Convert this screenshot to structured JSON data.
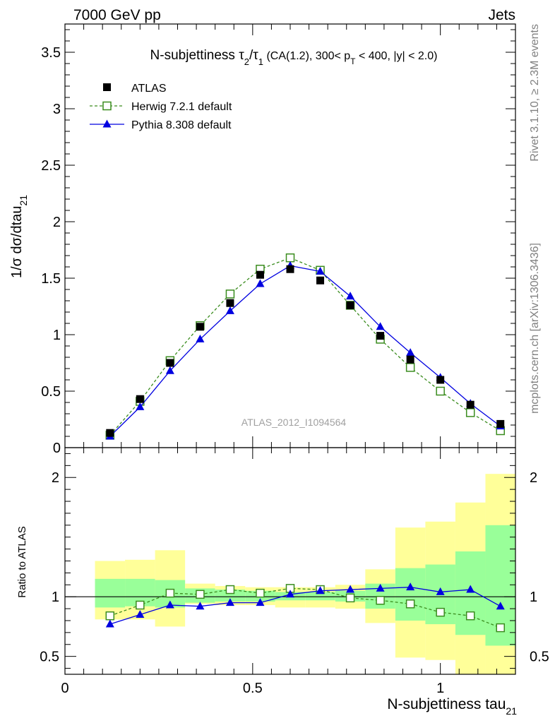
{
  "header": {
    "left_label": "7000 GeV pp",
    "right_label": "Jets"
  },
  "side_labels": {
    "rivet": "Rivet 3.1.10, ≥ 2.3M events",
    "mcplots": "mcplots.cern.ch [arXiv:1306.3436]"
  },
  "chart_data": [
    {
      "type": "scatter",
      "title": {
        "prefix": "N-subjettiness ",
        "tau": "τ",
        "sub2": "2",
        "slash": "/",
        "sub1": "1",
        "selection": " (CA(1.2), 300< p",
        "subT": "T",
        "rest": " < 400, |y| < 2.0)"
      },
      "ylabel": {
        "main": "1/σ dσ/dtau",
        "sub": "21"
      },
      "watermark": "ATLAS_2012_I1094564",
      "xlim": [
        0,
        1.2
      ],
      "ylim": [
        0,
        3.75
      ],
      "y_ticks": [
        0,
        0.5,
        1,
        1.5,
        2,
        2.5,
        3,
        3.5
      ],
      "y_tick_labels": [
        "0",
        "0.5",
        "1",
        "1.5",
        "2",
        "2.5",
        "3",
        "3.5"
      ],
      "legend": {
        "position": "top-left",
        "entries": [
          "ATLAS",
          "Herwig 7.2.1 default",
          "Pythia 8.308 default"
        ]
      },
      "x": [
        0.12,
        0.2,
        0.28,
        0.36,
        0.44,
        0.52,
        0.6,
        0.68,
        0.76,
        0.84,
        0.92,
        1.0,
        1.08,
        1.16
      ],
      "bin_edges": [
        0.08,
        0.16,
        0.24,
        0.32,
        0.4,
        0.48,
        0.56,
        0.64,
        0.72,
        0.8,
        0.88,
        0.96,
        1.04,
        1.12,
        1.2
      ],
      "series": [
        {
          "name": "ATLAS",
          "color": "#000000",
          "marker": "filled-square",
          "values": [
            0.13,
            0.43,
            0.75,
            1.07,
            1.28,
            1.53,
            1.58,
            1.48,
            1.26,
            0.99,
            0.78,
            0.6,
            0.38,
            0.21
          ]
        },
        {
          "name": "Herwig 7.2.1 default",
          "color": "#3a8c1e",
          "marker": "open-square",
          "line": "dashed",
          "values": [
            0.11,
            0.41,
            0.77,
            1.08,
            1.36,
            1.58,
            1.68,
            1.57,
            1.26,
            0.96,
            0.71,
            0.5,
            0.31,
            0.15
          ]
        },
        {
          "name": "Pythia 8.308 default",
          "color": "#0000e0",
          "marker": "filled-triangle",
          "line": "solid",
          "values": [
            0.1,
            0.36,
            0.68,
            0.96,
            1.21,
            1.45,
            1.61,
            1.56,
            1.34,
            1.07,
            0.84,
            0.62,
            0.39,
            0.19
          ]
        }
      ]
    },
    {
      "type": "line",
      "ylabel": "Ratio to ATLAS",
      "xlabel": {
        "main": "N-subjettiness tau",
        "sub": "21"
      },
      "xlim": [
        0,
        1.2
      ],
      "ylim": [
        0.35,
        2.25
      ],
      "x_ticks": [
        0,
        0.5,
        1
      ],
      "x_tick_labels": [
        "0",
        "0.5",
        "1"
      ],
      "y_ticks": [
        0.5,
        1,
        2
      ],
      "y_tick_labels": [
        "0.5",
        "1",
        "2"
      ],
      "reference_line": 1,
      "band_colors": {
        "inner": "#99ff99",
        "outer": "#ffff99"
      },
      "bands": {
        "inner_low": [
          0.91,
          0.92,
          0.91,
          0.95,
          0.96,
          0.96,
          0.97,
          0.97,
          0.96,
          0.9,
          0.8,
          0.77,
          0.68,
          0.59
        ],
        "inner_high": [
          1.15,
          1.15,
          1.14,
          1.07,
          1.06,
          1.05,
          1.04,
          1.04,
          1.05,
          1.11,
          1.24,
          1.27,
          1.38,
          1.6
        ],
        "outer_low": [
          0.81,
          0.81,
          0.75,
          0.94,
          0.93,
          0.93,
          0.91,
          0.91,
          0.9,
          0.78,
          0.49,
          0.47,
          0.31,
          0.28
        ],
        "outer_high": [
          1.3,
          1.31,
          1.39,
          1.11,
          1.09,
          1.08,
          1.08,
          1.08,
          1.1,
          1.23,
          1.58,
          1.63,
          1.79,
          2.03
        ]
      },
      "series": [
        {
          "name": "Herwig 7.2.1 default",
          "color": "#3a8c1e",
          "marker": "open-square",
          "line": "dashed",
          "values": [
            0.84,
            0.93,
            1.03,
            1.02,
            1.06,
            1.03,
            1.07,
            1.06,
            0.99,
            0.97,
            0.94,
            0.87,
            0.84,
            0.74
          ]
        },
        {
          "name": "Pythia 8.308 default",
          "color": "#0000e0",
          "marker": "filled-triangle",
          "line": "solid",
          "values": [
            0.77,
            0.85,
            0.93,
            0.92,
            0.95,
            0.95,
            1.02,
            1.05,
            1.06,
            1.07,
            1.08,
            1.04,
            1.06,
            0.92
          ]
        }
      ]
    }
  ]
}
